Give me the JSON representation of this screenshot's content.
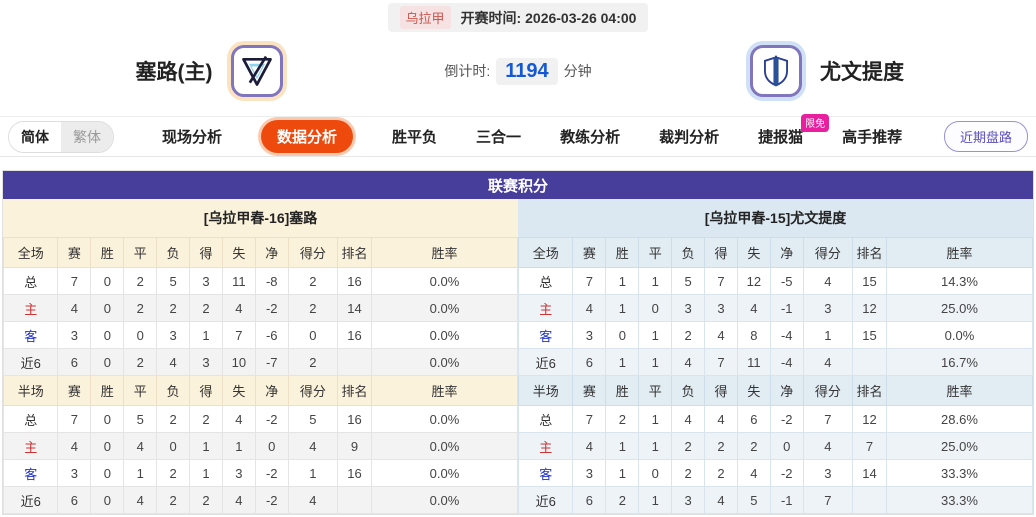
{
  "top_bar": {
    "league": "乌拉甲",
    "kickoff_label": "开赛时间:",
    "kickoff_time": "2026-03-26 04:00"
  },
  "match_header": {
    "home": {
      "name": "塞路(主)"
    },
    "away": {
      "name": "尤文提度"
    },
    "countdown": {
      "label": "倒计时:",
      "value": "1194",
      "unit": "分钟"
    }
  },
  "nav": {
    "lang": {
      "simplified": "简体",
      "traditional": "繁体"
    },
    "tabs": [
      "现场分析",
      "数据分析",
      "胜平负",
      "三合一",
      "教练分析",
      "裁判分析",
      "捷报猫",
      "高手推荐"
    ],
    "active_tab": "数据分析",
    "badge": "限免",
    "recent_button": "近期盘路"
  },
  "colors": {
    "accent_orange": "#ee4a0e",
    "title_purple": "#473d9b",
    "badge_pink": "#e81f9e",
    "countdown_blue": "#1558d6",
    "home_label_red": "#cc3333",
    "away_label_blue": "#2233cc",
    "home_header_cream": "#fbf2dc",
    "away_header_blue": "#dce8f1"
  },
  "league_table": {
    "title": "联赛积分",
    "home": {
      "header_title": "[乌拉甲春-16]塞路",
      "sections": [
        {
          "header": [
            "全场",
            "赛",
            "胜",
            "平",
            "负",
            "得",
            "失",
            "净",
            "得分",
            "排名",
            "胜率"
          ],
          "rows": [
            {
              "label": "总",
              "type": "total",
              "cells": [
                "7",
                "0",
                "2",
                "5",
                "3",
                "11",
                "-8",
                "2",
                "16",
                "0.0%"
              ]
            },
            {
              "label": "主",
              "type": "home",
              "cells": [
                "4",
                "0",
                "2",
                "2",
                "2",
                "4",
                "-2",
                "2",
                "14",
                "0.0%"
              ]
            },
            {
              "label": "客",
              "type": "away",
              "cells": [
                "3",
                "0",
                "0",
                "3",
                "1",
                "7",
                "-6",
                "0",
                "16",
                "0.0%"
              ]
            },
            {
              "label": "近6",
              "type": "last6",
              "cells": [
                "6",
                "0",
                "2",
                "4",
                "3",
                "10",
                "-7",
                "2",
                "",
                "0.0%"
              ]
            }
          ]
        },
        {
          "header": [
            "半场",
            "赛",
            "胜",
            "平",
            "负",
            "得",
            "失",
            "净",
            "得分",
            "排名",
            "胜率"
          ],
          "rows": [
            {
              "label": "总",
              "type": "total",
              "cells": [
                "7",
                "0",
                "5",
                "2",
                "2",
                "4",
                "-2",
                "5",
                "16",
                "0.0%"
              ]
            },
            {
              "label": "主",
              "type": "home",
              "cells": [
                "4",
                "0",
                "4",
                "0",
                "1",
                "1",
                "0",
                "4",
                "9",
                "0.0%"
              ]
            },
            {
              "label": "客",
              "type": "away",
              "cells": [
                "3",
                "0",
                "1",
                "2",
                "1",
                "3",
                "-2",
                "1",
                "16",
                "0.0%"
              ]
            },
            {
              "label": "近6",
              "type": "last6",
              "cells": [
                "6",
                "0",
                "4",
                "2",
                "2",
                "4",
                "-2",
                "4",
                "",
                "0.0%"
              ]
            }
          ]
        }
      ]
    },
    "away": {
      "header_title": "[乌拉甲春-15]尤文提度",
      "sections": [
        {
          "header": [
            "全场",
            "赛",
            "胜",
            "平",
            "负",
            "得",
            "失",
            "净",
            "得分",
            "排名",
            "胜率"
          ],
          "rows": [
            {
              "label": "总",
              "type": "total",
              "cells": [
                "7",
                "1",
                "1",
                "5",
                "7",
                "12",
                "-5",
                "4",
                "15",
                "14.3%"
              ]
            },
            {
              "label": "主",
              "type": "home",
              "cells": [
                "4",
                "1",
                "0",
                "3",
                "3",
                "4",
                "-1",
                "3",
                "12",
                "25.0%"
              ]
            },
            {
              "label": "客",
              "type": "away",
              "cells": [
                "3",
                "0",
                "1",
                "2",
                "4",
                "8",
                "-4",
                "1",
                "15",
                "0.0%"
              ]
            },
            {
              "label": "近6",
              "type": "last6",
              "cells": [
                "6",
                "1",
                "1",
                "4",
                "7",
                "11",
                "-4",
                "4",
                "",
                "16.7%"
              ]
            }
          ]
        },
        {
          "header": [
            "半场",
            "赛",
            "胜",
            "平",
            "负",
            "得",
            "失",
            "净",
            "得分",
            "排名",
            "胜率"
          ],
          "rows": [
            {
              "label": "总",
              "type": "total",
              "cells": [
                "7",
                "2",
                "1",
                "4",
                "4",
                "6",
                "-2",
                "7",
                "12",
                "28.6%"
              ]
            },
            {
              "label": "主",
              "type": "home",
              "cells": [
                "4",
                "1",
                "1",
                "2",
                "2",
                "2",
                "0",
                "4",
                "7",
                "25.0%"
              ]
            },
            {
              "label": "客",
              "type": "away",
              "cells": [
                "3",
                "1",
                "0",
                "2",
                "2",
                "4",
                "-2",
                "3",
                "14",
                "33.3%"
              ]
            },
            {
              "label": "近6",
              "type": "last6",
              "cells": [
                "6",
                "2",
                "1",
                "3",
                "4",
                "5",
                "-1",
                "7",
                "",
                "33.3%"
              ]
            }
          ]
        }
      ]
    }
  }
}
